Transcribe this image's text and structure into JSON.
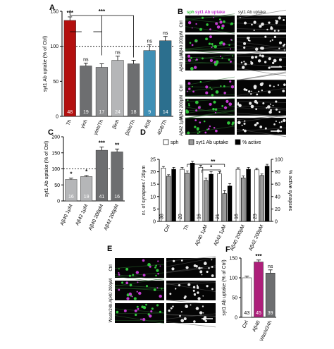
{
  "panel_labels": [
    "A",
    "B",
    "C",
    "D",
    "E",
    "F"
  ],
  "colors": {
    "th": "#b3100f",
    "gray_dark": "#6d6e70",
    "gray_mid": "#8d8e90",
    "gray_light": "#b5b6b8",
    "teal_mid": "#3f8fb5",
    "teal_dark": "#2c6f8e",
    "pink": "#ad1f7a",
    "gray_bar": "#9b9b9b",
    "dark_bar": "#555555",
    "black": "#000000",
    "white_bar": "#ffffff",
    "sph_green": "#31c53b",
    "uptake_magenta": "#c33ad0",
    "micro_bg": "#050505"
  },
  "chart_data": [
    {
      "id": "A",
      "type": "bar",
      "ylabel": "syt1 Ab uptake (% of Ctrl)",
      "ylim": [
        0,
        150
      ],
      "yticks": [
        0,
        50,
        100,
        150
      ],
      "reference_line": 100,
      "categories": [
        "Th",
        "γinh",
        "γinh/Th",
        "βinh",
        "βinh/Th",
        "4G8",
        "4G8/Th"
      ],
      "values": [
        137,
        72,
        70,
        80,
        75,
        94,
        108
      ],
      "errors": [
        5,
        4,
        5,
        6,
        5,
        8,
        6
      ],
      "n": [
        "48",
        "19",
        "17",
        "24",
        "18",
        "9",
        "14"
      ],
      "labels_above": [
        "***",
        "ns",
        "",
        "ns",
        "",
        "ns",
        "ns"
      ],
      "bracket_label": "***"
    },
    {
      "id": "C",
      "type": "bar",
      "ylabel": "syt1 Ab uptake (% of Ctrl)",
      "ylim": [
        0,
        200
      ],
      "yticks": [
        0,
        50,
        100,
        150,
        200
      ],
      "reference_line": 100,
      "categories": [
        "Aβ40 1μM",
        "Aβ42 1μM",
        "Aβ40 200pM",
        "Aβ42 200pM"
      ],
      "values": [
        67,
        76,
        158,
        153
      ],
      "errors": [
        4,
        3,
        10,
        9
      ],
      "n": [
        "16",
        "19",
        "41",
        "16"
      ],
      "labels_above": [
        "*",
        "*",
        "***",
        "**"
      ]
    },
    {
      "id": "D",
      "type": "bar",
      "ylabel": "nr. of synapses / 20μm",
      "ylabel_right": "% active synapses",
      "ylim": [
        0,
        25
      ],
      "yticks": [
        0,
        5,
        10,
        15,
        20,
        25
      ],
      "ylim_right": [
        0,
        100
      ],
      "yticks_right": [
        0,
        20,
        40,
        60,
        80,
        100
      ],
      "categories": [
        "Ctrl",
        "Th",
        "Aβ40 1μM",
        "Aβ42 1μM",
        "Aβ40 200pM",
        "Aβ42 200pM"
      ],
      "legend": [
        "sph",
        "syt1 Ab uptake",
        "% active"
      ],
      "series": [
        {
          "name": "sph",
          "values": [
            21.5,
            21.0,
            21.8,
            19.2,
            21.0,
            20.8
          ],
          "errors": [
            0.6,
            0.7,
            0.8,
            0.9,
            0.6,
            0.7
          ]
        },
        {
          "name": "syt1 Ab uptake",
          "values": [
            18.2,
            19.5,
            16.5,
            11.2,
            17.5,
            18.5
          ],
          "errors": [
            0.6,
            0.8,
            0.9,
            1.2,
            0.8,
            0.6
          ]
        },
        {
          "name": "% active",
          "values": [
            84,
            94,
            76,
            57,
            84,
            89
          ],
          "errors": [
            3,
            3,
            4,
            4,
            3,
            3
          ]
        }
      ],
      "n": [
        "38",
        "20",
        "16",
        "21",
        "16",
        "23"
      ],
      "labels_above": [
        "*",
        "**"
      ]
    },
    {
      "id": "F",
      "type": "bar",
      "ylabel": "syt1 Ab uptake (% of Ctrl)",
      "ylim": [
        0,
        150
      ],
      "yticks": [
        0,
        50,
        100,
        150
      ],
      "categories": [
        "Ctrl",
        "Aβ40",
        "Wash/24h"
      ],
      "values": [
        100,
        140,
        112
      ],
      "errors": [
        4,
        5,
        8
      ],
      "n": [
        "43",
        "45",
        "39"
      ],
      "labels_above": [
        "",
        "***",
        "ns"
      ]
    }
  ],
  "microscopy": {
    "B": {
      "channel_sph": "sph",
      "channel_uptake": "syt1 Ab uptake",
      "row_labels_top": [
        "Ctrl",
        "Aβ40 200pM",
        "Aβ40 1μM"
      ],
      "row_labels_bottom": [
        "Ctrl",
        "Aβ42 200pM",
        "Aβ42 1μM"
      ]
    },
    "E": {
      "channel_sph": "sph",
      "channel_uptake": "syt1 Ab uptake",
      "row_labels": [
        "Ctrl",
        "Aβ40 200pM",
        "Wash/24h"
      ]
    }
  }
}
